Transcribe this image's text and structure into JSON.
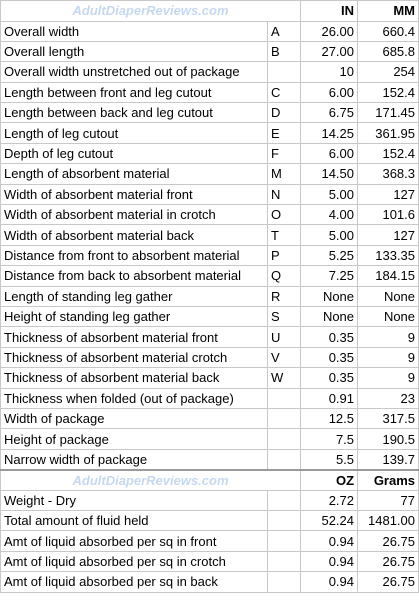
{
  "header": {
    "watermark": "AdultDiaperReviews.com",
    "unit_in": "IN",
    "unit_mm": "MM"
  },
  "measurements": [
    {
      "label": "Overall width",
      "code": "A",
      "in": "26.00",
      "mm": "660.4"
    },
    {
      "label": "Overall length",
      "code": "B",
      "in": "27.00",
      "mm": "685.8"
    },
    {
      "label": "Overall width unstretched out of package",
      "code": "",
      "in": "10",
      "mm": "254"
    },
    {
      "label": "Length between front and leg cutout",
      "code": "C",
      "in": "6.00",
      "mm": "152.4"
    },
    {
      "label": "Length between back and leg cutout",
      "code": "D",
      "in": "6.75",
      "mm": "171.45"
    },
    {
      "label": "Length of leg cutout",
      "code": "E",
      "in": "14.25",
      "mm": "361.95"
    },
    {
      "label": "Depth of leg cutout",
      "code": "F",
      "in": "6.00",
      "mm": "152.4"
    },
    {
      "label": "Length of absorbent material",
      "code": "M",
      "in": "14.50",
      "mm": "368.3"
    },
    {
      "label": "Width of absorbent material front",
      "code": "N",
      "in": "5.00",
      "mm": "127"
    },
    {
      "label": "Width of absorbent material in crotch",
      "code": "O",
      "in": "4.00",
      "mm": "101.6"
    },
    {
      "label": "Width of absorbent material back",
      "code": "T",
      "in": "5.00",
      "mm": "127"
    },
    {
      "label": "Distance from front to absorbent material",
      "code": "P",
      "in": "5.25",
      "mm": "133.35"
    },
    {
      "label": "Distance from back to absorbent material",
      "code": "Q",
      "in": "7.25",
      "mm": "184.15"
    },
    {
      "label": "Length of standing leg gather",
      "code": "R",
      "in": "None",
      "mm": "None"
    },
    {
      "label": "Height of standing leg gather",
      "code": "S",
      "in": "None",
      "mm": "None"
    },
    {
      "label": "Thickness of absorbent material front",
      "code": "U",
      "in": "0.35",
      "mm": "9"
    },
    {
      "label": "Thickness of absorbent material crotch",
      "code": "V",
      "in": "0.35",
      "mm": "9"
    },
    {
      "label": "Thickness of absorbent material back",
      "code": "W",
      "in": "0.35",
      "mm": "9"
    },
    {
      "label": "Thickness when folded (out of package)",
      "code": "",
      "in": "0.91",
      "mm": "23"
    },
    {
      "label": "Width of package",
      "code": "",
      "in": "12.5",
      "mm": "317.5"
    },
    {
      "label": "Height of package",
      "code": "",
      "in": "7.5",
      "mm": "190.5"
    },
    {
      "label": "Narrow width of package",
      "code": "",
      "in": "5.5",
      "mm": "139.7"
    }
  ],
  "header2": {
    "watermark": "AdultDiaperReviews.com",
    "unit_oz": "OZ",
    "unit_grams": "Grams"
  },
  "weights": [
    {
      "label": "Weight - Dry",
      "code": "",
      "oz": "2.72",
      "grams": "77"
    },
    {
      "label": "Total amount of fluid held",
      "code": "",
      "oz": "52.24",
      "grams": "1481.00"
    },
    {
      "label": "Amt of liquid absorbed per sq in front",
      "code": "",
      "oz": "0.94",
      "grams": "26.75"
    },
    {
      "label": "Amt of liquid absorbed per sq in crotch",
      "code": "",
      "oz": "0.94",
      "grams": "26.75"
    },
    {
      "label": "Amt of liquid absorbed per sq in back",
      "code": "",
      "oz": "0.94",
      "grams": "26.75"
    }
  ]
}
